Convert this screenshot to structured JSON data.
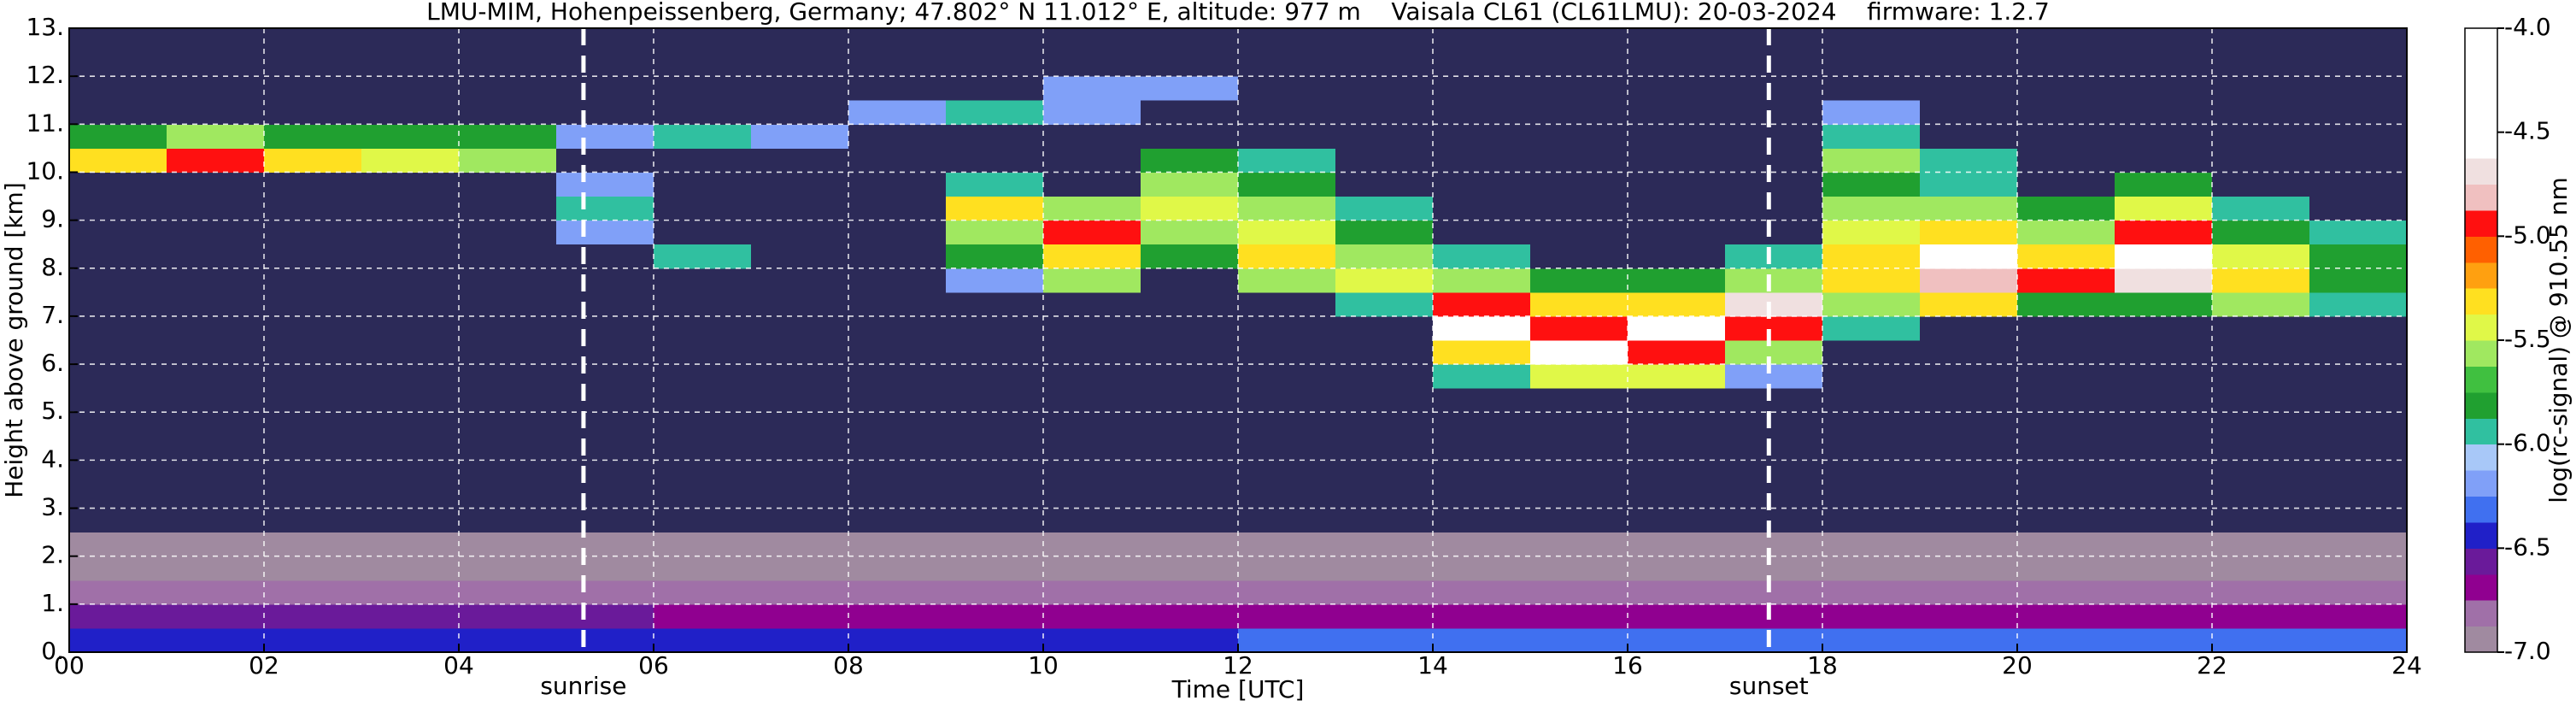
{
  "chart_data": {
    "type": "heatmap",
    "title": "LMU-MIM, Hohenpeissenberg, Germany; 47.802° N 11.012° E, altitude: 977 m    Vaisala CL61 (CL61LMU): 20-03-2024    firmware: 1.2.7",
    "x_label": "Time [UTC]",
    "y_label": "Height above ground [km]",
    "colorbar_label": "log(rc-signal) @ 910.55 nm",
    "xlim": [
      0,
      24
    ],
    "xticks": [
      {
        "value": 0,
        "label": "00"
      },
      {
        "value": 2,
        "label": "02"
      },
      {
        "value": 4,
        "label": "04"
      },
      {
        "value": 6,
        "label": "06"
      },
      {
        "value": 8,
        "label": "08"
      },
      10,
      12,
      14,
      16,
      18,
      20,
      22,
      24
    ],
    "ylim": [
      0,
      13
    ],
    "yticks": [
      {
        "value": 0,
        "label": "0."
      },
      {
        "value": 1,
        "label": "1."
      },
      {
        "value": 2,
        "label": "2."
      },
      {
        "value": 3,
        "label": "3."
      },
      {
        "value": 4,
        "label": "4."
      },
      {
        "value": 5,
        "label": "5."
      },
      {
        "value": 6,
        "label": "6."
      },
      {
        "value": 7,
        "label": "7."
      },
      {
        "value": 8,
        "label": "8."
      },
      {
        "value": 9,
        "label": "9."
      },
      {
        "value": 10,
        "label": "10."
      },
      {
        "value": 11,
        "label": "11."
      },
      {
        "value": 12,
        "label": "12."
      },
      {
        "value": 13,
        "label": "13."
      }
    ],
    "grid": true,
    "zlim": [
      -7,
      -4
    ],
    "zticks": [
      {
        "value": -4,
        "label": "-4.0"
      },
      -4.5,
      {
        "value": -5,
        "label": "-5.0"
      },
      -5.5,
      {
        "value": -6,
        "label": "-6.0"
      },
      -6.5,
      {
        "value": -7,
        "label": "-7.0"
      }
    ],
    "colors": [
      "#a08aa0",
      "#a070a8",
      "#900090",
      "#6a1a9a",
      "#2020c8",
      "#4070f0",
      "#80a0f8",
      "#a8c8f8",
      "#30c0a0",
      "#20a030",
      "#40c040",
      "#a0e860",
      "#e0f848",
      "#ffe020",
      "#ffa010",
      "#ff6000",
      "#ff1010",
      "#f0c0c0",
      "#f0e0e0",
      "#ffffff",
      "#ffffff",
      "#ffffff",
      "#ffffff",
      "#ffffff"
    ],
    "under_color": "#2c2a58",
    "annotations": [
      {
        "label": "sunrise",
        "x": 5.28
      },
      {
        "label": "sunset",
        "x": 17.45
      }
    ],
    "x_edges": [
      0,
      1,
      2,
      3,
      4,
      5,
      6,
      7,
      8,
      9,
      10,
      11,
      12,
      13,
      14,
      15,
      16,
      17,
      18,
      19,
      20,
      21,
      22,
      23,
      24
    ],
    "y_edges": [
      0,
      0.5,
      1,
      1.5,
      2,
      2.5,
      3,
      3.5,
      4,
      4.5,
      5,
      5.5,
      6,
      6.5,
      7,
      7.5,
      8,
      8.5,
      9,
      9.5,
      10,
      10.5,
      11,
      11.5,
      12,
      12.5,
      13
    ],
    "z": [
      [
        -6.4,
        -6.4,
        -6.4,
        -6.4,
        -6.4,
        -6.4,
        -6.4,
        -6.4,
        -6.4,
        -6.4,
        -6.4,
        -6.4,
        -6.3,
        -6.3,
        -6.3,
        -6.3,
        -6.3,
        -6.3,
        -6.3,
        -6.3,
        -6.3,
        -6.3,
        -6.3,
        -6.3
      ],
      [
        -6.6,
        -6.6,
        -6.55,
        -6.55,
        -6.55,
        -6.55,
        -6.7,
        -6.7,
        -6.7,
        -6.7,
        -6.7,
        -6.75,
        -6.75,
        -6.75,
        -6.75,
        -6.75,
        -6.75,
        -6.75,
        -6.7,
        -6.7,
        -6.7,
        -6.7,
        -6.75,
        -6.75
      ],
      [
        -6.85,
        -6.85,
        -6.85,
        -6.85,
        -6.85,
        -6.85,
        -6.85,
        -6.85,
        -6.85,
        -6.85,
        -6.85,
        -6.85,
        -6.85,
        -6.85,
        -6.85,
        -6.85,
        -6.85,
        -6.85,
        -6.85,
        -6.85,
        -6.85,
        -6.85,
        -6.85,
        -6.85
      ],
      [
        -6.9,
        -6.9,
        -6.9,
        -6.9,
        -6.9,
        -6.9,
        -6.9,
        -6.9,
        -6.9,
        -6.9,
        -6.9,
        -6.9,
        -6.9,
        -6.9,
        -6.9,
        -6.9,
        -6.9,
        -6.9,
        -6.9,
        -6.9,
        -6.9,
        -6.9,
        -6.9,
        -6.9
      ],
      [
        -6.95,
        -6.95,
        -6.95,
        -6.95,
        -6.95,
        -6.95,
        -6.95,
        -6.95,
        -6.95,
        -6.95,
        -6.95,
        -6.95,
        -6.95,
        -6.95,
        -6.95,
        -6.95,
        -6.95,
        -6.95,
        -6.95,
        -6.95,
        -6.95,
        -6.95,
        -6.95,
        -6.95
      ],
      [
        -7.5,
        -7.5,
        -7.5,
        -7.5,
        -7.5,
        -7.5,
        -7.5,
        -7.5,
        -7.5,
        -7.5,
        -7.5,
        -7.5,
        -7.5,
        -7.5,
        -7.5,
        -7.5,
        -7.5,
        -7.5,
        -7.5,
        -7.5,
        -7.5,
        -7.5,
        -7.5,
        -7.5
      ],
      [
        -7.5,
        -7.5,
        -7.5,
        -7.5,
        -7.5,
        -7.5,
        -7.5,
        -7.5,
        -7.5,
        -7.5,
        -7.5,
        -7.5,
        -7.5,
        -7.5,
        -7.5,
        -7.5,
        -7.5,
        -7.5,
        -7.5,
        -7.5,
        -7.5,
        -7.5,
        -7.5,
        -7.5
      ],
      [
        -7.5,
        -7.5,
        -7.5,
        -7.5,
        -7.5,
        -7.5,
        -7.5,
        -7.5,
        -7.5,
        -7.5,
        -7.5,
        -7.5,
        -7.5,
        -7.5,
        -7.5,
        -7.5,
        -7.5,
        -7.5,
        -7.5,
        -7.5,
        -7.5,
        -7.5,
        -7.5,
        -7.5
      ],
      [
        -7.5,
        -7.5,
        -7.5,
        -7.5,
        -7.5,
        -7.5,
        -7.5,
        -7.5,
        -7.5,
        -7.5,
        -7.5,
        -7.5,
        -7.5,
        -7.5,
        -7.5,
        -7.5,
        -7.5,
        -7.5,
        -7.5,
        -7.5,
        -7.5,
        -7.5,
        -7.5,
        -7.5
      ],
      [
        -7.5,
        -7.5,
        -7.5,
        -7.5,
        -7.5,
        -7.5,
        -7.5,
        -7.5,
        -7.5,
        -7.5,
        -7.5,
        -7.5,
        -7.5,
        -7.5,
        -7.5,
        -7.5,
        -7.5,
        -7.5,
        -7.5,
        -7.5,
        -7.5,
        -7.5,
        -7.5,
        -7.5
      ],
      [
        -7.5,
        -7.5,
        -7.5,
        -7.5,
        -7.5,
        -7.5,
        -7.5,
        -7.5,
        -7.5,
        -7.5,
        -7.5,
        -7.5,
        -7.5,
        -7.5,
        -7.5,
        -7.5,
        -7.5,
        -7.5,
        -7.5,
        -7.5,
        -7.5,
        -7.5,
        -7.5,
        -7.5
      ],
      [
        -7.5,
        -7.5,
        -7.5,
        -7.5,
        -7.5,
        -7.5,
        -7.5,
        -7.5,
        -7.5,
        -7.5,
        -7.5,
        -7.5,
        -7.5,
        -7.5,
        -6.0,
        -5.5,
        -5.5,
        -6.2,
        -7.5,
        -7.5,
        -7.5,
        -7.5,
        -7.5,
        -7.5
      ],
      [
        -7.5,
        -7.5,
        -7.5,
        -7.5,
        -7.5,
        -7.5,
        -7.5,
        -7.5,
        -7.5,
        -7.5,
        -7.5,
        -7.5,
        -7.5,
        -7.5,
        -5.3,
        -4.6,
        -5.0,
        -5.6,
        -7.5,
        -7.5,
        -7.5,
        -7.5,
        -7.5,
        -7.5
      ],
      [
        -7.5,
        -7.5,
        -7.5,
        -7.5,
        -7.5,
        -7.5,
        -7.5,
        -7.5,
        -7.5,
        -7.5,
        -7.5,
        -7.5,
        -7.5,
        -7.5,
        -4.6,
        -5.0,
        -4.6,
        -5.0,
        -6.0,
        -7.5,
        -7.5,
        -7.5,
        -7.5,
        -7.5
      ],
      [
        -7.5,
        -7.5,
        -7.5,
        -7.5,
        -7.5,
        -7.5,
        -7.5,
        -7.5,
        -7.5,
        -7.5,
        -7.5,
        -7.5,
        -7.5,
        -6.0,
        -5.0,
        -5.3,
        -5.3,
        -4.7,
        -5.6,
        -5.3,
        -5.8,
        -5.8,
        -5.6,
        -6.0
      ],
      [
        -7.5,
        -7.5,
        -7.5,
        -7.5,
        -7.5,
        -7.5,
        -7.5,
        -7.5,
        -7.5,
        -6.2,
        -5.6,
        -7.5,
        -5.6,
        -5.5,
        -5.6,
        -5.8,
        -5.8,
        -5.6,
        -5.3,
        -4.8,
        -5.0,
        -4.7,
        -5.3,
        -5.8
      ],
      [
        -7.5,
        -7.5,
        -7.5,
        -7.5,
        -7.5,
        -7.5,
        -6.0,
        -7.5,
        -7.5,
        -5.8,
        -5.3,
        -5.8,
        -5.3,
        -5.6,
        -6.0,
        -7.5,
        -7.5,
        -6.0,
        -5.3,
        -4.6,
        -5.3,
        -4.6,
        -5.5,
        -5.8
      ],
      [
        -7.5,
        -7.5,
        -7.5,
        -7.5,
        -7.5,
        -6.2,
        -7.5,
        -7.5,
        -7.5,
        -5.6,
        -5.0,
        -5.6,
        -5.5,
        -5.8,
        -7.5,
        -7.5,
        -7.5,
        -7.5,
        -5.5,
        -5.3,
        -5.6,
        -5.0,
        -5.8,
        -6.0
      ],
      [
        -7.5,
        -7.5,
        -7.5,
        -7.5,
        -7.5,
        -6.0,
        -7.5,
        -7.5,
        -7.5,
        -5.3,
        -5.6,
        -5.5,
        -5.6,
        -6.0,
        -7.5,
        -7.5,
        -7.5,
        -7.5,
        -5.6,
        -5.6,
        -5.8,
        -5.5,
        -6.0,
        -7.5
      ],
      [
        -7.5,
        -7.5,
        -7.5,
        -7.5,
        -7.5,
        -6.2,
        -7.5,
        -7.5,
        -7.5,
        -6.0,
        -7.5,
        -5.6,
        -5.8,
        -7.5,
        -7.5,
        -7.5,
        -7.5,
        -7.5,
        -5.8,
        -6.0,
        -7.5,
        -5.8,
        -7.5,
        -7.5
      ],
      [
        -5.3,
        -5.0,
        -5.3,
        -5.5,
        -5.6,
        -7.5,
        -7.5,
        -7.5,
        -7.5,
        -7.5,
        -7.5,
        -5.8,
        -6.0,
        -7.5,
        -7.5,
        -7.5,
        -7.5,
        -7.5,
        -5.6,
        -6.0,
        -7.5,
        -7.5,
        -7.5,
        -7.5
      ],
      [
        -5.8,
        -5.6,
        -5.8,
        -5.8,
        -5.8,
        -6.2,
        -6.0,
        -6.2,
        -7.5,
        -7.5,
        -7.5,
        -7.5,
        -7.5,
        -7.5,
        -7.5,
        -7.5,
        -7.5,
        -7.5,
        -6.0,
        -7.5,
        -7.5,
        -7.5,
        -7.5,
        -7.5
      ],
      [
        -7.5,
        -7.5,
        -7.5,
        -7.5,
        -7.5,
        -7.5,
        -7.5,
        -7.5,
        -6.2,
        -6.0,
        -6.2,
        -7.5,
        -7.5,
        -7.5,
        -7.5,
        -7.5,
        -7.5,
        -7.5,
        -6.2,
        -7.5,
        -7.5,
        -7.5,
        -7.5,
        -7.5
      ],
      [
        -7.5,
        -7.5,
        -7.5,
        -7.5,
        -7.5,
        -7.5,
        -7.5,
        -7.5,
        -7.5,
        -7.5,
        -6.2,
        -6.2,
        -7.5,
        -7.5,
        -7.5,
        -7.5,
        -7.5,
        -7.5,
        -7.5,
        -7.5,
        -7.5,
        -7.5,
        -7.5,
        -7.5
      ],
      [
        -7.5,
        -7.5,
        -7.5,
        -7.5,
        -7.5,
        -7.5,
        -7.5,
        -7.5,
        -7.5,
        -7.5,
        -7.5,
        -7.5,
        -7.5,
        -7.5,
        -7.5,
        -7.5,
        -7.5,
        -7.5,
        -7.5,
        -7.5,
        -7.5,
        -7.5,
        -7.5,
        -7.5
      ],
      [
        -7.5,
        -7.5,
        -7.5,
        -7.5,
        -7.5,
        -7.5,
        -7.5,
        -7.5,
        -7.5,
        -7.5,
        -7.5,
        -7.5,
        -7.5,
        -7.5,
        -7.5,
        -7.5,
        -7.5,
        -7.5,
        -7.5,
        -7.5,
        -7.5,
        -7.5,
        -7.5,
        -7.5
      ]
    ]
  }
}
